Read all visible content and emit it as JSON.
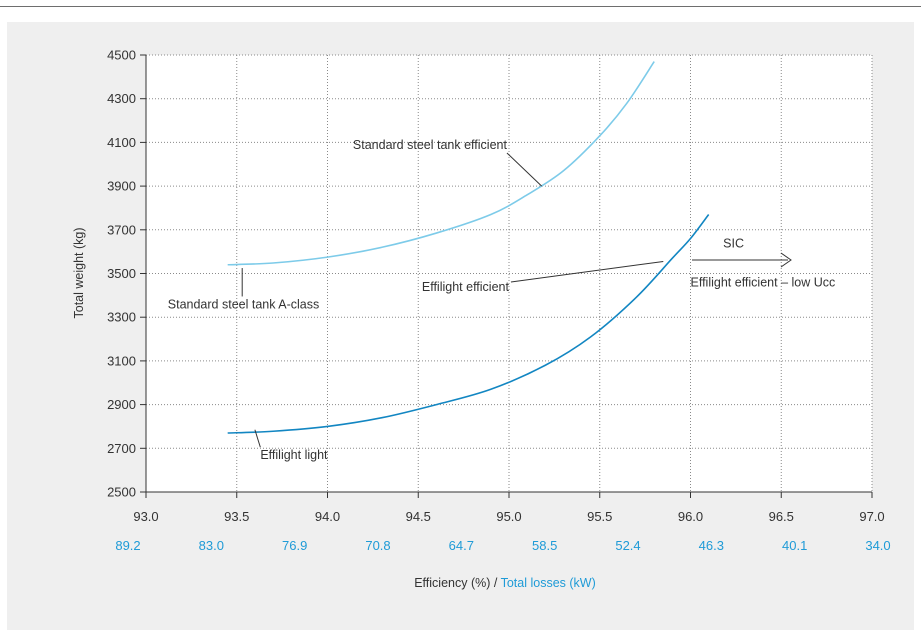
{
  "chart_data": {
    "type": "line",
    "ylabel": "Total weight (kg)",
    "xlabel": {
      "primary": "Efficiency (%)",
      "separator": " / ",
      "secondary": "Total losses (kW)"
    },
    "xlim": [
      93.0,
      97.0
    ],
    "ylim": [
      2500,
      4500
    ],
    "x_ticks": [
      "93.0",
      "93.5",
      "94.0",
      "94.5",
      "95.0",
      "95.5",
      "96.0",
      "96.5",
      "97.0"
    ],
    "x_ticks_secondary": [
      "89.2",
      "83.0",
      "76.9",
      "70.8",
      "64.7",
      "58.5",
      "52.4",
      "46.3",
      "40.1",
      "34.0"
    ],
    "y_ticks": [
      "4500",
      "4300",
      "4100",
      "3900",
      "3700",
      "3500",
      "3300",
      "3100",
      "2900",
      "2700",
      "2500"
    ],
    "grid": true,
    "series": [
      {
        "name": "Standard steel tank efficient",
        "color": "#7dcbe9",
        "points": [
          [
            93.45,
            3540
          ],
          [
            93.7,
            3548
          ],
          [
            94.0,
            3575
          ],
          [
            94.3,
            3620
          ],
          [
            94.6,
            3685
          ],
          [
            94.9,
            3770
          ],
          [
            95.1,
            3860
          ],
          [
            95.3,
            3970
          ],
          [
            95.5,
            4130
          ],
          [
            95.65,
            4280
          ],
          [
            95.8,
            4470
          ]
        ]
      },
      {
        "name": "Effilight efficient",
        "color": "#1286c2",
        "points": [
          [
            93.45,
            2770
          ],
          [
            93.7,
            2778
          ],
          [
            94.0,
            2800
          ],
          [
            94.3,
            2840
          ],
          [
            94.6,
            2900
          ],
          [
            94.9,
            2970
          ],
          [
            95.2,
            3080
          ],
          [
            95.45,
            3210
          ],
          [
            95.7,
            3390
          ],
          [
            95.9,
            3570
          ],
          [
            96.0,
            3660
          ],
          [
            96.1,
            3770
          ]
        ]
      }
    ],
    "annotations": [
      {
        "text": "Standard steel tank efficient",
        "x": 94.14,
        "y": 4070,
        "pointer_to": [
          95.18,
          3900
        ]
      },
      {
        "text": "Standard steel tank A-class",
        "x": 93.12,
        "y": 3340,
        "pointer_to": [
          93.53,
          3525
        ]
      },
      {
        "text": "Effilight efficient",
        "x": 94.52,
        "y": 3420,
        "pointer_to": [
          95.85,
          3555
        ]
      },
      {
        "text": "Effilight light",
        "x": 93.63,
        "y": 2650,
        "pointer_to": [
          93.6,
          2785
        ]
      },
      {
        "text": "SIC",
        "x": 96.18,
        "y": 3620
      },
      {
        "text": "Effilight efficient – low Ucc",
        "x": 96.0,
        "y": 3440
      }
    ]
  }
}
